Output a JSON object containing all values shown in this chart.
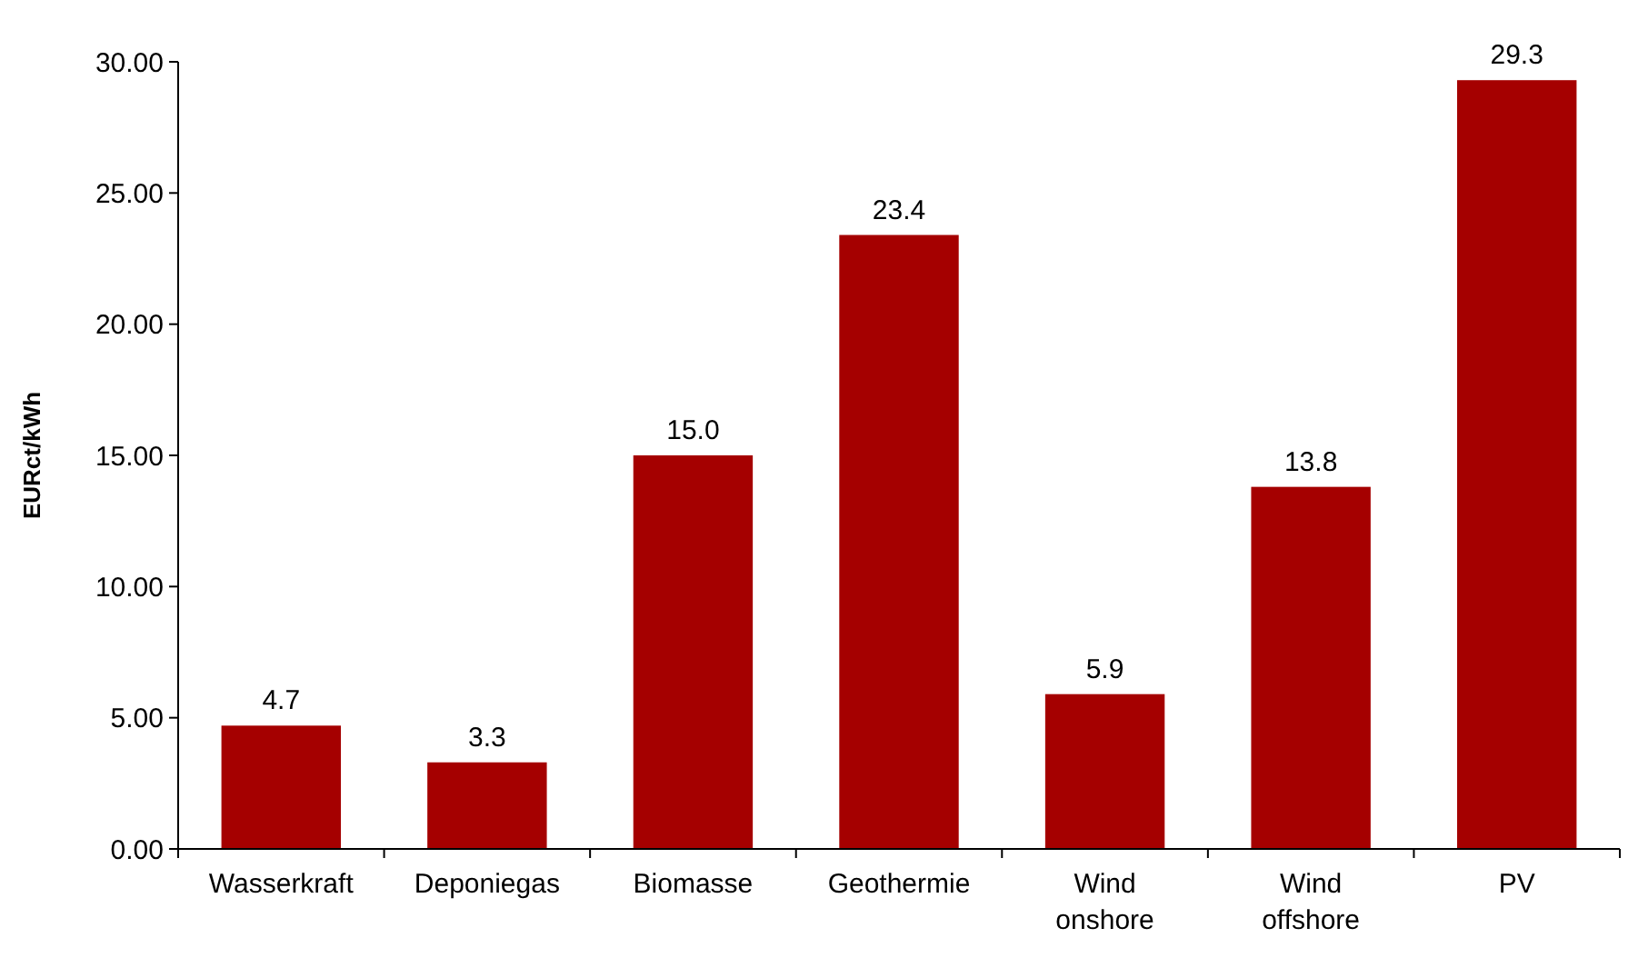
{
  "chart_data": {
    "type": "bar",
    "ylabel": "EURct/kWh",
    "categories": [
      "Wasserkraft",
      "Deponiegas",
      "Biomasse",
      "Geothermie",
      "Wind onshore",
      "Wind offshore",
      "PV"
    ],
    "values": [
      4.7,
      3.3,
      15.0,
      23.4,
      5.9,
      13.8,
      29.3
    ],
    "color": "#a50000",
    "ylim": [
      0,
      30
    ],
    "yticks": [
      {
        "value": 0,
        "label": "0.00"
      },
      {
        "value": 5,
        "label": "5.00"
      },
      {
        "value": 10,
        "label": "10.00"
      },
      {
        "value": 15,
        "label": "15.00"
      },
      {
        "value": 20,
        "label": "20.00"
      },
      {
        "value": 25,
        "label": "25.00"
      },
      {
        "value": 30,
        "label": "30.00"
      }
    ],
    "grid": false,
    "value_labels": [
      "4.7",
      "3.3",
      "15.0",
      "23.4",
      "5.9",
      "13.8",
      "29.3"
    ]
  }
}
